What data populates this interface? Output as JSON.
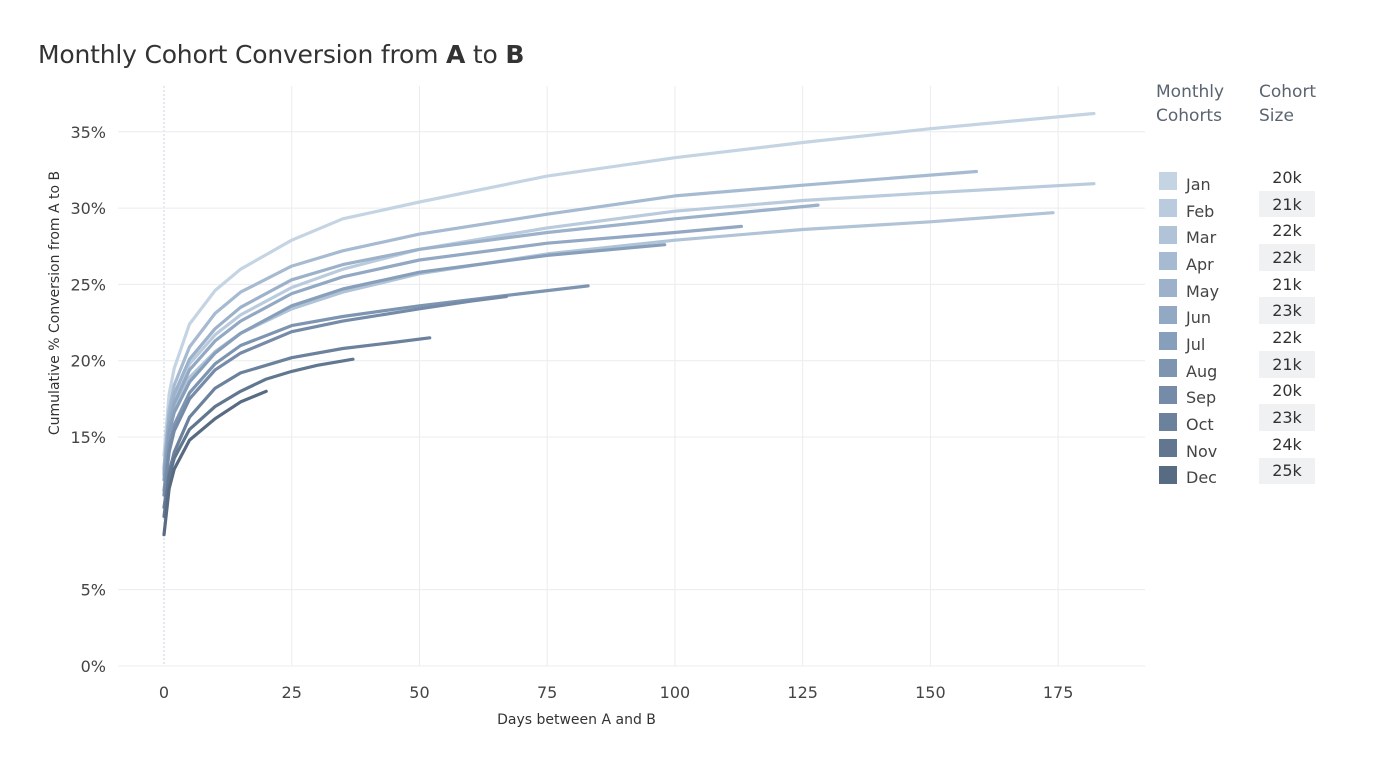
{
  "title": {
    "prefix": "Monthly Cohort Conversion from ",
    "a": "A",
    "mid": " to ",
    "b": "B"
  },
  "legend": {
    "cohort_header": [
      "Monthly",
      "Cohorts"
    ],
    "size_header": [
      "Cohort",
      "Size"
    ]
  },
  "chart_data": {
    "type": "line",
    "xlabel": "Days between A and B",
    "ylabel": "Cumulative % Conversion from A to B",
    "x_ticks": [
      0,
      25,
      50,
      75,
      100,
      125,
      150,
      175
    ],
    "y_ticks": [
      "0%",
      "5%",
      "15%",
      "20%",
      "25%",
      "30%",
      "35%"
    ],
    "y_tick_values": [
      0,
      5,
      15,
      20,
      25,
      30,
      35
    ],
    "xlim": [
      -9,
      192
    ],
    "ylim": [
      0,
      38
    ],
    "grid": true,
    "series": [
      {
        "name": "Jan",
        "size": "20k",
        "color": "#c5d4e3",
        "x": [
          0,
          1,
          2,
          5,
          10,
          15,
          25,
          35,
          50,
          75,
          100,
          125,
          150,
          182
        ],
        "y": [
          13.8,
          17.8,
          19.5,
          22.4,
          24.6,
          26.0,
          27.9,
          29.3,
          30.4,
          32.1,
          33.3,
          34.3,
          35.2,
          36.2
        ]
      },
      {
        "name": "Feb",
        "size": "21k",
        "color": "#bacbdd",
        "x": [
          0,
          1,
          2,
          5,
          10,
          15,
          25,
          35,
          50,
          75,
          100,
          125,
          150,
          182
        ],
        "y": [
          12.8,
          16.2,
          17.6,
          19.8,
          21.7,
          23.0,
          24.8,
          26.0,
          27.3,
          28.7,
          29.8,
          30.5,
          31.0,
          31.6
        ]
      },
      {
        "name": "Mar",
        "size": "22k",
        "color": "#b0c3d7",
        "x": [
          0,
          1,
          2,
          5,
          10,
          15,
          25,
          35,
          50,
          75,
          100,
          125,
          150,
          174
        ],
        "y": [
          12.5,
          15.8,
          17.0,
          18.9,
          20.6,
          21.8,
          23.4,
          24.5,
          25.7,
          27.0,
          27.9,
          28.6,
          29.1,
          29.7
        ]
      },
      {
        "name": "Apr",
        "size": "22k",
        "color": "#a6bad1",
        "x": [
          0,
          1,
          2,
          5,
          10,
          15,
          25,
          35,
          50,
          75,
          100,
          125,
          159
        ],
        "y": [
          13.0,
          16.8,
          18.4,
          20.9,
          23.1,
          24.5,
          26.2,
          27.2,
          28.3,
          29.6,
          30.8,
          31.5,
          32.4
        ]
      },
      {
        "name": "May",
        "size": "21k",
        "color": "#9cb1ca",
        "x": [
          0,
          1,
          2,
          5,
          10,
          15,
          25,
          35,
          50,
          75,
          100,
          128
        ],
        "y": [
          12.9,
          16.3,
          17.8,
          20.1,
          22.1,
          23.5,
          25.3,
          26.3,
          27.3,
          28.4,
          29.3,
          30.2
        ]
      },
      {
        "name": "Jun",
        "size": "23k",
        "color": "#92a8c3",
        "x": [
          0,
          1,
          2,
          5,
          10,
          15,
          25,
          35,
          50,
          75,
          100,
          113
        ],
        "y": [
          12.6,
          15.8,
          17.2,
          19.4,
          21.3,
          22.6,
          24.4,
          25.5,
          26.6,
          27.7,
          28.4,
          28.8
        ]
      },
      {
        "name": "Jul",
        "size": "22k",
        "color": "#889fbb",
        "x": [
          0,
          1,
          2,
          5,
          10,
          15,
          25,
          35,
          50,
          75,
          98
        ],
        "y": [
          12.2,
          15.3,
          16.6,
          18.6,
          20.5,
          21.8,
          23.6,
          24.7,
          25.8,
          26.9,
          27.6
        ]
      },
      {
        "name": "Aug",
        "size": "21k",
        "color": "#7e95b2",
        "x": [
          0,
          1,
          2,
          5,
          10,
          15,
          25,
          35,
          50,
          70,
          83
        ],
        "y": [
          11.5,
          14.4,
          15.8,
          17.9,
          19.8,
          21.0,
          22.3,
          22.9,
          23.6,
          24.4,
          24.9
        ]
      },
      {
        "name": "Sep",
        "size": "20k",
        "color": "#758ba8",
        "x": [
          0,
          1,
          2,
          5,
          10,
          15,
          25,
          35,
          50,
          60,
          67
        ],
        "y": [
          11.2,
          14.0,
          15.4,
          17.5,
          19.4,
          20.5,
          21.9,
          22.6,
          23.4,
          23.9,
          24.2
        ]
      },
      {
        "name": "Oct",
        "size": "23k",
        "color": "#6b819c",
        "x": [
          0,
          1,
          2,
          5,
          10,
          15,
          25,
          35,
          45,
          52
        ],
        "y": [
          10.4,
          12.7,
          14.0,
          16.3,
          18.2,
          19.2,
          20.2,
          20.8,
          21.2,
          21.5
        ]
      },
      {
        "name": "Nov",
        "size": "24k",
        "color": "#617790",
        "x": [
          0,
          1,
          2,
          5,
          10,
          15,
          20,
          25,
          30,
          37
        ],
        "y": [
          9.8,
          12.4,
          13.6,
          15.5,
          17.0,
          18.0,
          18.8,
          19.3,
          19.7,
          20.1
        ]
      },
      {
        "name": "Dec",
        "size": "25k",
        "color": "#576b82",
        "x": [
          0,
          1,
          2,
          5,
          10,
          15,
          20
        ],
        "y": [
          8.6,
          11.6,
          12.9,
          14.8,
          16.2,
          17.3,
          18.0
        ]
      }
    ]
  }
}
